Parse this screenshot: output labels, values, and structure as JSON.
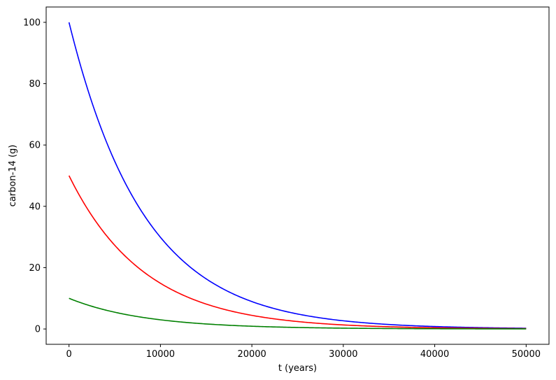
{
  "chart_data": {
    "type": "line",
    "title": "",
    "xlabel": "t (years)",
    "ylabel": "carbon-14 (g)",
    "xlim": [
      -2500,
      52500
    ],
    "ylim": [
      -5,
      105
    ],
    "xticks": [
      0,
      10000,
      20000,
      30000,
      40000,
      50000
    ],
    "xtick_labels": [
      "0",
      "10000",
      "20000",
      "30000",
      "40000",
      "50000"
    ],
    "yticks": [
      0,
      20,
      40,
      60,
      80,
      100
    ],
    "ytick_labels": [
      "0",
      "20",
      "40",
      "60",
      "80",
      "100"
    ],
    "grid": false,
    "legend": "none",
    "x": [
      0,
      2500,
      5000,
      7500,
      10000,
      12500,
      15000,
      17500,
      20000,
      22500,
      25000,
      27500,
      30000,
      32500,
      35000,
      37500,
      40000,
      42500,
      45000,
      47500,
      50000
    ],
    "series": [
      {
        "color": "#0000ff",
        "values": [
          100,
          73.9,
          54.6,
          40.4,
          29.9,
          22.1,
          16.3,
          12.1,
          8.9,
          6.6,
          4.9,
          3.6,
          2.7,
          2.0,
          1.5,
          1.1,
          0.8,
          0.6,
          0.44,
          0.33,
          0.24
        ]
      },
      {
        "color": "#ff0000",
        "values": [
          50,
          36.9,
          27.3,
          20.2,
          14.9,
          11.0,
          8.2,
          6.0,
          4.5,
          3.3,
          2.4,
          1.8,
          1.3,
          1.0,
          0.7,
          0.55,
          0.4,
          0.3,
          0.22,
          0.16,
          0.12
        ]
      },
      {
        "color": "#008000",
        "values": [
          10,
          7.39,
          5.46,
          4.04,
          2.99,
          2.21,
          1.63,
          1.21,
          0.89,
          0.66,
          0.49,
          0.36,
          0.27,
          0.2,
          0.15,
          0.11,
          0.08,
          0.06,
          0.04,
          0.03,
          0.02
        ]
      }
    ]
  }
}
